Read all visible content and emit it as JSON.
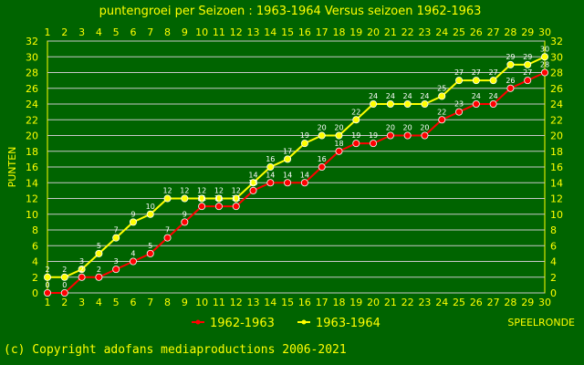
{
  "chart_data": {
    "type": "line",
    "title": "puntengroei per Seizoen : 1963-1964 Versus seizoen 1962-1963",
    "ylabel": "PUNTEN",
    "xlabel": "SPEELRONDE",
    "x": [
      1,
      2,
      3,
      4,
      5,
      6,
      7,
      8,
      9,
      10,
      11,
      12,
      13,
      14,
      15,
      16,
      17,
      18,
      19,
      20,
      21,
      22,
      23,
      24,
      25,
      26,
      27,
      28,
      29,
      30
    ],
    "xlim": [
      1,
      30
    ],
    "ylim": [
      0,
      32
    ],
    "yticks": [
      0,
      2,
      4,
      6,
      8,
      10,
      12,
      14,
      16,
      18,
      20,
      22,
      24,
      26,
      28,
      30,
      32
    ],
    "grid": true,
    "legend_position": "bottom",
    "series": [
      {
        "name": "1962-1963",
        "color": "#ff0000",
        "values": [
          0,
          0,
          2,
          2,
          3,
          4,
          5,
          7,
          9,
          11,
          11,
          11,
          13,
          14,
          14,
          14,
          16,
          18,
          19,
          19,
          20,
          20,
          20,
          22,
          23,
          24,
          24,
          26,
          27,
          28
        ]
      },
      {
        "name": "1963-1964",
        "color": "#ffff00",
        "values": [
          2,
          2,
          3,
          5,
          7,
          9,
          10,
          12,
          12,
          12,
          12,
          12,
          14,
          16,
          17,
          19,
          20,
          20,
          22,
          24,
          24,
          24,
          24,
          25,
          27,
          27,
          27,
          29,
          29,
          30
        ]
      }
    ]
  },
  "footer": {
    "copyright": "(c) Copyright adofans mediaproductions 2006-2021"
  }
}
